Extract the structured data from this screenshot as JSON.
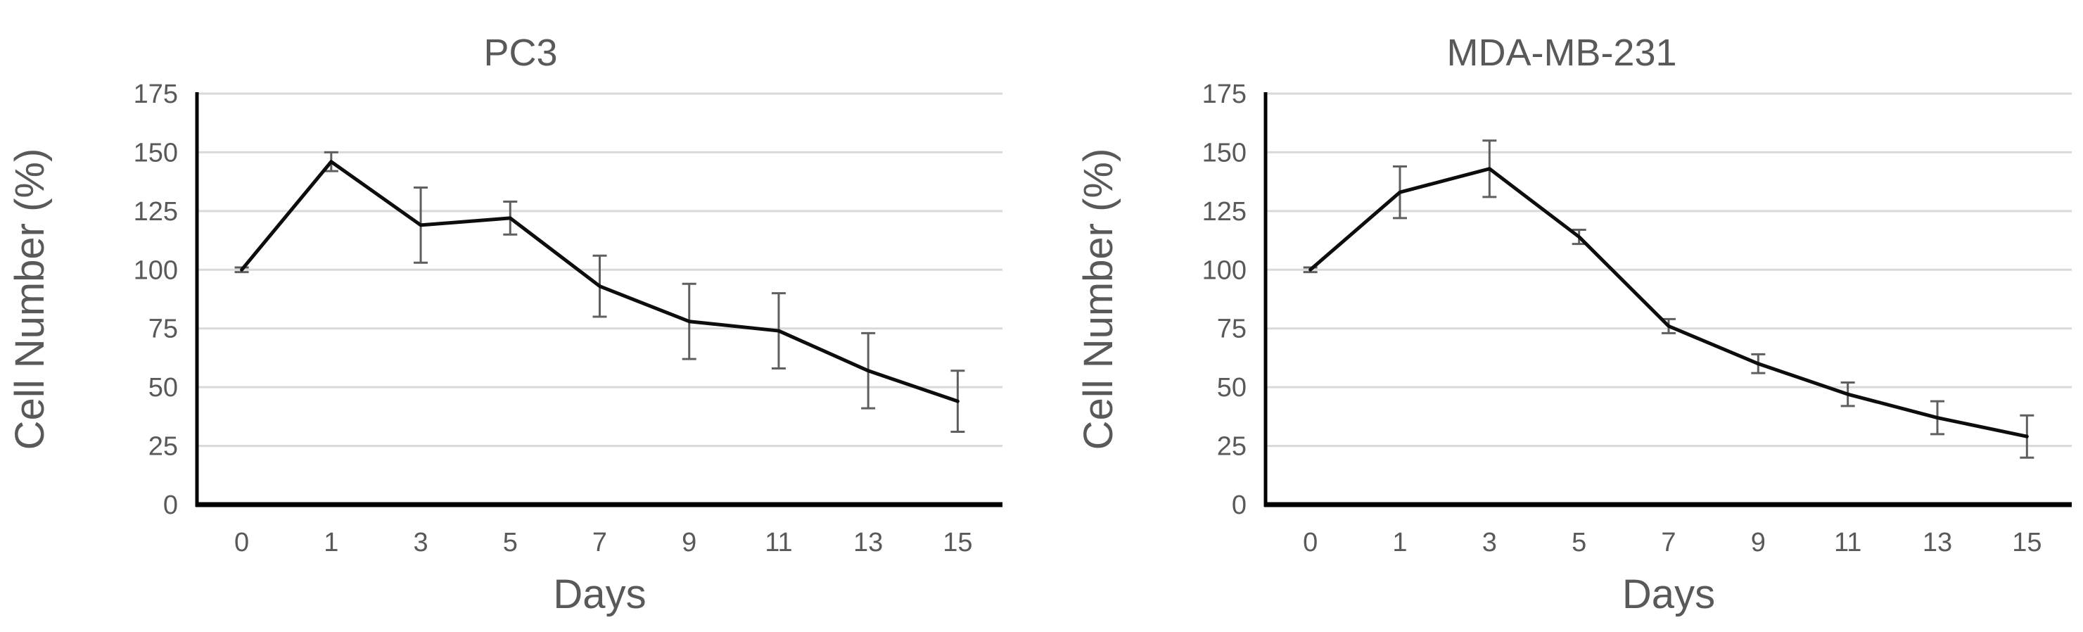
{
  "figure": {
    "background": "#ffffff",
    "description": "Two line charts of cell number percentage over days for two cell lines"
  },
  "style_colors": {
    "text": "#595959",
    "grid": "#d9d9d9",
    "axis": "#000000"
  },
  "chart_data": [
    {
      "type": "line",
      "title": "PC3",
      "xlabel": "Days",
      "ylabel": "Cell Number (%)",
      "categories": [
        "0",
        "1",
        "3",
        "5",
        "7",
        "9",
        "11",
        "13",
        "15"
      ],
      "yticks": [
        0,
        25,
        50,
        75,
        100,
        125,
        150,
        175
      ],
      "ylim": [
        0,
        175
      ],
      "grid": true,
      "legend": "none",
      "series": [
        {
          "name": "PC3",
          "values": [
            100,
            146,
            119,
            122,
            93,
            78,
            74,
            57,
            44
          ],
          "errors": [
            1,
            4,
            16,
            7,
            13,
            16,
            16,
            16,
            13
          ],
          "line_color": "#0d0d0d",
          "error_color": "#5f5f5f"
        }
      ]
    },
    {
      "type": "line",
      "title": "MDA-MB-231",
      "xlabel": "Days",
      "ylabel": "Cell Number (%)",
      "categories": [
        "0",
        "1",
        "3",
        "5",
        "7",
        "9",
        "11",
        "13",
        "15"
      ],
      "yticks": [
        0,
        25,
        50,
        75,
        100,
        125,
        150,
        175
      ],
      "ylim": [
        0,
        175
      ],
      "grid": true,
      "legend": "none",
      "series": [
        {
          "name": "MDA-MB-231",
          "values": [
            100,
            133,
            143,
            114,
            76,
            60,
            47,
            37,
            29
          ],
          "errors": [
            1,
            11,
            12,
            3,
            3,
            4,
            5,
            7,
            9
          ],
          "line_color": "#0d0d0d",
          "error_color": "#5f5f5f"
        }
      ]
    }
  ]
}
